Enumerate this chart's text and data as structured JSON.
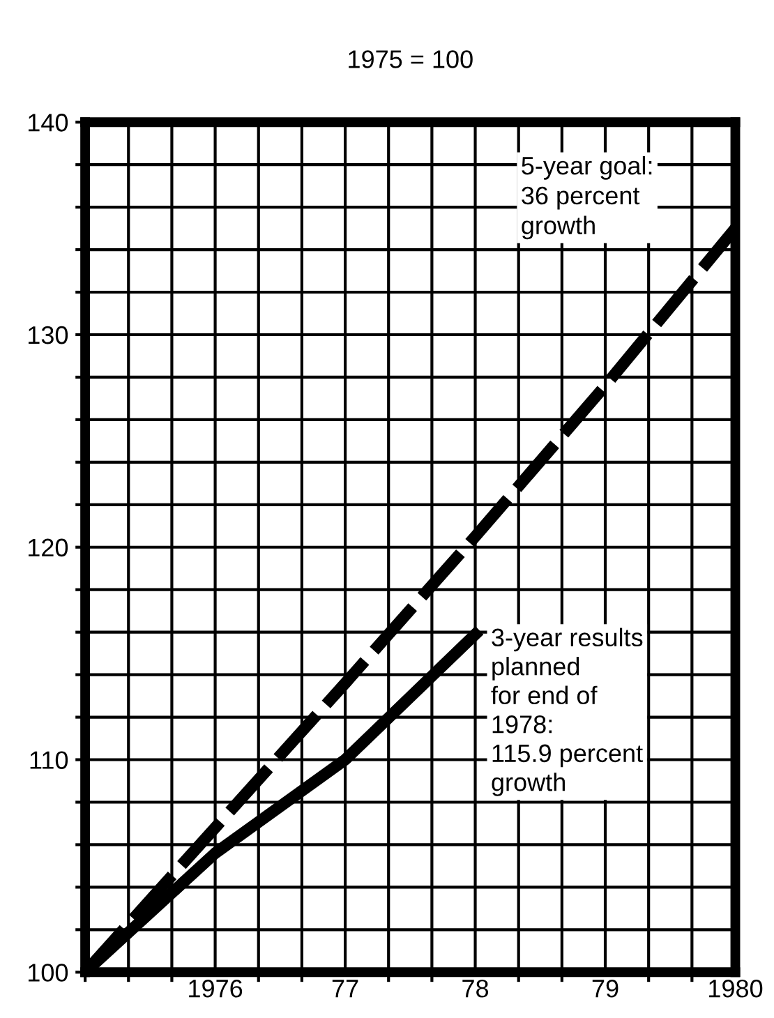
{
  "chart_data": {
    "type": "line",
    "title": "1975 = 100",
    "series": [
      {
        "name": "5-year goal:\n36 percent\ngrowth",
        "color": "#000000",
        "line_style": "dashed",
        "x": [
          1975,
          1976,
          1977,
          1978,
          1979,
          1980
        ],
        "values": [
          100,
          106.8,
          113.6,
          120.5,
          127.6,
          135
        ]
      },
      {
        "name": "3-year results\nplanned\nfor end of\n1978:\n115.9 percent\ngrowth",
        "color": "#000000",
        "line_style": "solid",
        "x": [
          1975,
          1976,
          1977,
          1978
        ],
        "values": [
          100,
          105.6,
          110,
          115.9
        ]
      }
    ],
    "xlim": [
      1975,
      1980
    ],
    "ylim": [
      100,
      140
    ],
    "xticks": [
      1976,
      {
        "value": 1977,
        "label": "77"
      },
      {
        "value": 1978,
        "label": "78"
      },
      {
        "value": 1979,
        "label": "79"
      },
      1980
    ],
    "yticks": [
      100,
      110,
      120,
      130,
      140
    ],
    "grid": true,
    "legend": false
  }
}
